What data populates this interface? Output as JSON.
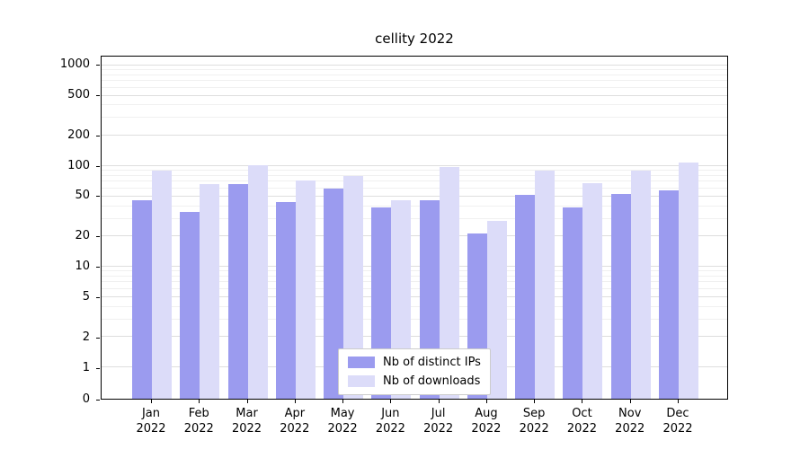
{
  "chart_data": {
    "type": "bar",
    "title": "cellity 2022",
    "categories": [
      "Jan",
      "Feb",
      "Mar",
      "Apr",
      "May",
      "Jun",
      "Jul",
      "Aug",
      "Sep",
      "Oct",
      "Nov",
      "Dec"
    ],
    "category_year": "2022",
    "series": [
      {
        "name": "Nb of distinct IPs",
        "color": "#9b9bef",
        "values": [
          45,
          34,
          65,
          43,
          58,
          38,
          45,
          21,
          50,
          38,
          52,
          56
        ]
      },
      {
        "name": "Nb of downloads",
        "color": "#dcdcf9",
        "values": [
          88,
          65,
          100,
          70,
          78,
          45,
          95,
          28,
          88,
          66,
          87,
          105
        ]
      }
    ],
    "xlabel": "",
    "ylabel": "",
    "yscale": "symlog",
    "yticks": [
      0,
      1,
      2,
      5,
      10,
      20,
      50,
      100,
      200,
      500,
      1000
    ],
    "ylim": [
      0,
      1200
    ],
    "grid": true,
    "legend_position": "lower center"
  }
}
